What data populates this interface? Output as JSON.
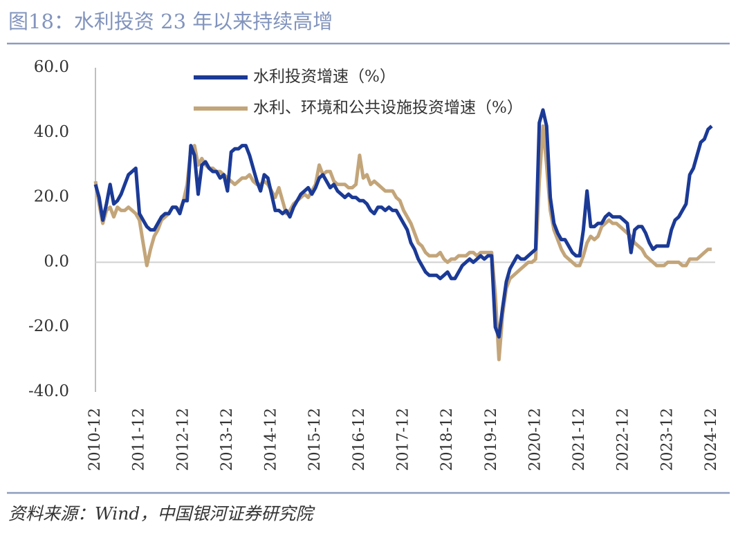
{
  "chart_data": {
    "type": "line",
    "title": "图18：水利投资 23 年以来持续高增",
    "source": "资料来源：Wind，中国银河证券研究院",
    "legend": "upper center",
    "grid": false,
    "ylim": [
      -40,
      60
    ],
    "yticks": [
      {
        "value": 60,
        "label": "60.0"
      },
      {
        "value": 40,
        "label": "40.0"
      },
      {
        "value": 20,
        "label": "20.0"
      },
      {
        "value": 0,
        "label": "0.0"
      },
      {
        "value": -20,
        "label": "-20.0"
      },
      {
        "value": -40,
        "label": "-40.0"
      }
    ],
    "categories": [
      "2010-12",
      null,
      null,
      null,
      null,
      null,
      null,
      null,
      null,
      null,
      null,
      null,
      "2011-12",
      null,
      null,
      null,
      null,
      null,
      null,
      null,
      null,
      null,
      null,
      null,
      "2012-12",
      null,
      null,
      null,
      null,
      null,
      null,
      null,
      null,
      null,
      null,
      null,
      "2013-12",
      null,
      null,
      null,
      null,
      null,
      null,
      null,
      null,
      null,
      null,
      null,
      "2014-12",
      null,
      null,
      null,
      null,
      null,
      null,
      null,
      null,
      null,
      null,
      null,
      "2015-12",
      null,
      null,
      null,
      null,
      null,
      null,
      null,
      null,
      null,
      null,
      null,
      "2016-12",
      null,
      null,
      null,
      null,
      null,
      null,
      null,
      null,
      null,
      null,
      null,
      "2017-12",
      null,
      null,
      null,
      null,
      null,
      null,
      null,
      null,
      null,
      null,
      null,
      "2018-12",
      null,
      null,
      null,
      null,
      null,
      null,
      null,
      null,
      null,
      null,
      null,
      "2019-12",
      null,
      null,
      null,
      null,
      null,
      null,
      null,
      null,
      null,
      null,
      null,
      "2020-12",
      null,
      null,
      null,
      null,
      null,
      null,
      null,
      null,
      null,
      null,
      null,
      "2021-12",
      null,
      null,
      null,
      null,
      null,
      null,
      null,
      null,
      null,
      null,
      null,
      "2022-12",
      null,
      null,
      null,
      null,
      null,
      null,
      null,
      null,
      null,
      null,
      null,
      "2023-12",
      null,
      null,
      null,
      null,
      null,
      null,
      null,
      null,
      null,
      null,
      null,
      "2024-12"
    ],
    "series": [
      {
        "name": "水利投资增速（%）",
        "color": "#1b3a96",
        "values": [
          24,
          20,
          13,
          18,
          24,
          18,
          19,
          21,
          24,
          27,
          28,
          29,
          15,
          13,
          11,
          10,
          10,
          12,
          14,
          15,
          15,
          17,
          17,
          15,
          19,
          19,
          36,
          33,
          21,
          30,
          31,
          29,
          28,
          28,
          26,
          27,
          22,
          34,
          35,
          35,
          36,
          36,
          33,
          29,
          25,
          22,
          27,
          26,
          21,
          16,
          16,
          15,
          16,
          14,
          17,
          19,
          21,
          22,
          23,
          21,
          23,
          26,
          27,
          25,
          23,
          24,
          22,
          21,
          20,
          21,
          20,
          20,
          19,
          19,
          18,
          16,
          15,
          17,
          17,
          16,
          17,
          16,
          16,
          14,
          12,
          10,
          6,
          4,
          1,
          -1,
          -3,
          -4,
          -4,
          -4,
          -5,
          -4,
          -3,
          -5,
          -5,
          -3,
          -1,
          0,
          1,
          0,
          1,
          2,
          1,
          2,
          2,
          -20,
          -23,
          -14,
          -6,
          -2,
          0,
          2,
          1,
          1,
          2,
          3,
          4,
          43,
          47,
          42,
          20,
          12,
          9,
          7,
          7,
          5,
          3,
          2,
          2,
          10,
          22,
          11,
          11,
          12,
          12,
          14,
          15,
          14,
          14,
          14,
          13,
          12,
          3,
          10,
          11,
          11,
          9,
          6,
          4,
          5,
          5,
          5,
          5,
          10,
          13,
          14,
          16,
          18,
          27,
          29,
          33,
          37,
          38,
          41,
          42
        ]
      },
      {
        "name": "水利、环境和公共设施投资增速（%）",
        "color": "#c3a57a",
        "values": [
          25,
          18,
          12,
          16,
          17,
          14,
          17,
          16,
          16,
          17,
          16,
          15,
          13,
          6,
          -1,
          4,
          8,
          10,
          13,
          14,
          15,
          17,
          17,
          16,
          19,
          24,
          35,
          36,
          30,
          32,
          30,
          29,
          29,
          28,
          28,
          27,
          26,
          25,
          24,
          25,
          26,
          26,
          27,
          25,
          24,
          24,
          25,
          24,
          22,
          20,
          23,
          19,
          15,
          16,
          18,
          19,
          20,
          21,
          20,
          22,
          24,
          30,
          27,
          28,
          28,
          25,
          24,
          24,
          24,
          23,
          23,
          24,
          33,
          26,
          27,
          24,
          25,
          24,
          23,
          22,
          22,
          22,
          20,
          19,
          16,
          14,
          12,
          9,
          6,
          5,
          3,
          2,
          2,
          2,
          3,
          1,
          0,
          1,
          1,
          2,
          2,
          2,
          3,
          3,
          2,
          3,
          3,
          3,
          3,
          -10,
          -30,
          -16,
          -8,
          -5,
          -4,
          -3,
          -2,
          -1,
          0,
          0,
          1,
          25,
          42,
          30,
          16,
          10,
          7,
          4,
          2,
          1,
          0,
          -1,
          -1,
          2,
          6,
          8,
          7,
          8,
          11,
          12,
          13,
          12,
          12,
          11,
          10,
          9,
          8,
          6,
          5,
          4,
          2,
          1,
          0,
          -1,
          -1,
          -1,
          0,
          0,
          0,
          0,
          -1,
          -1,
          1,
          1,
          1,
          2,
          3,
          4,
          4
        ]
      }
    ]
  }
}
